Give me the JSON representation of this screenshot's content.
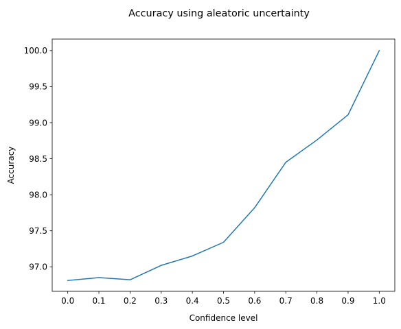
{
  "chart_data": {
    "type": "line",
    "title": "Accuracy using aleatoric uncertainty",
    "xlabel": "Confidence level",
    "ylabel": "Accuracy",
    "x": [
      0.0,
      0.1,
      0.2,
      0.3,
      0.4,
      0.5,
      0.6,
      0.7,
      0.8,
      0.9,
      1.0
    ],
    "series": [
      {
        "values": [
          96.81,
          96.85,
          96.82,
          97.02,
          97.15,
          97.34,
          97.82,
          98.45,
          98.76,
          99.11,
          100.0
        ],
        "color": "#1f77b4"
      }
    ],
    "x_ticks": [
      "0.0",
      "0.1",
      "0.2",
      "0.3",
      "0.4",
      "0.5",
      "0.6",
      "0.7",
      "0.8",
      "0.9",
      "1.0"
    ],
    "x_tick_values": [
      0.0,
      0.1,
      0.2,
      0.3,
      0.4,
      0.5,
      0.6,
      0.7,
      0.8,
      0.9,
      1.0
    ],
    "y_ticks": [
      "97.0",
      "97.5",
      "98.0",
      "98.5",
      "99.0",
      "99.5",
      "100.0"
    ],
    "y_tick_values": [
      97.0,
      97.5,
      98.0,
      98.5,
      99.0,
      99.5,
      100.0
    ],
    "xlim": [
      -0.05,
      1.05
    ],
    "ylim": [
      96.66,
      100.16
    ],
    "grid": false,
    "legend": "none"
  }
}
